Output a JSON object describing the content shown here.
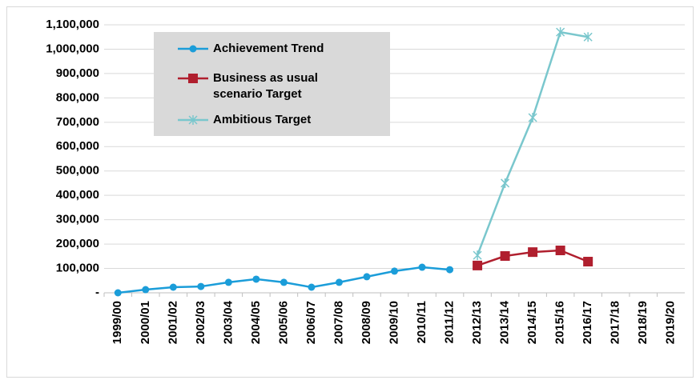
{
  "chart_data": {
    "type": "line",
    "categories": [
      "1999/00",
      "2000/01",
      "2001/02",
      "2002/03",
      "2003/04",
      "2004/05",
      "2005/06",
      "2006/07",
      "2007/08",
      "2008/09",
      "2009/10",
      "2010/11",
      "2011/12",
      "2012/13",
      "2013/14",
      "2014/15",
      "2015/16",
      "2016/17",
      "2017/18",
      "2018/19",
      "2019/20"
    ],
    "series": [
      {
        "name": "Achievement Trend",
        "color": "#1b9dd9",
        "marker": "circle",
        "values": [
          0,
          13000,
          23000,
          26000,
          43000,
          56000,
          43000,
          23000,
          43000,
          66000,
          89000,
          105000,
          95000,
          null,
          null,
          null,
          null,
          null,
          null,
          null,
          null
        ]
      },
      {
        "name": "Business as usual scenario Target",
        "color": "#b01f2e",
        "marker": "square",
        "values": [
          null,
          null,
          null,
          null,
          null,
          null,
          null,
          null,
          null,
          null,
          null,
          null,
          null,
          112000,
          151000,
          167000,
          174000,
          128000,
          null,
          null,
          null
        ]
      },
      {
        "name": "Ambitious Target",
        "color": "#7ac7cd",
        "marker": "star",
        "values": [
          null,
          null,
          null,
          null,
          null,
          null,
          null,
          null,
          null,
          null,
          null,
          null,
          null,
          154000,
          450000,
          719000,
          1070000,
          1050000,
          null,
          null,
          null
        ]
      }
    ],
    "ylim": [
      0,
      1100000
    ],
    "yticks": [
      {
        "value": 0,
        "label": "-"
      },
      {
        "value": 100000,
        "label": "100,000"
      },
      {
        "value": 200000,
        "label": "200,000"
      },
      {
        "value": 300000,
        "label": "300,000"
      },
      {
        "value": 400000,
        "label": "400,000"
      },
      {
        "value": 500000,
        "label": "500,000"
      },
      {
        "value": 600000,
        "label": "600,000"
      },
      {
        "value": 700000,
        "label": "700,000"
      },
      {
        "value": 800000,
        "label": "800,000"
      },
      {
        "value": 900000,
        "label": "900,000"
      },
      {
        "value": 1000000,
        "label": "1,000,000"
      },
      {
        "value": 1100000,
        "label": "1,100,000"
      }
    ],
    "grid": true
  }
}
